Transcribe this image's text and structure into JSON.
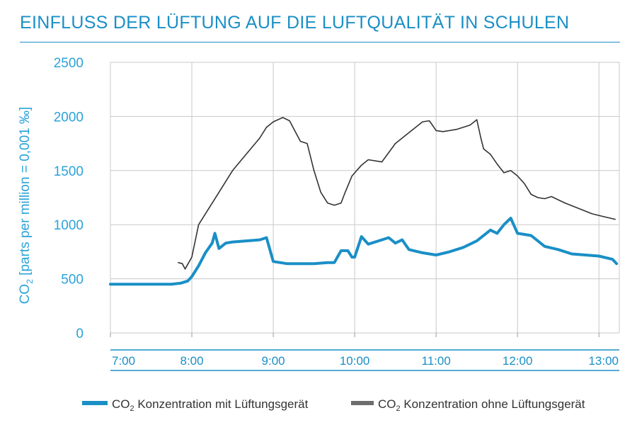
{
  "title": "EINFLUSS DER LÜFTUNG AUF DIE LUFTQUALITÄT IN SCHULEN",
  "colors": {
    "accent": "#1a8fc6",
    "axis_text": "#2aa3d8",
    "series_with": "#1a8fc6",
    "series_without": "#333333",
    "grid": "#c8c8c8",
    "legend_without_swatch": "#6d6d6d"
  },
  "chart_data": {
    "type": "line",
    "ylabel_prefix": "CO",
    "ylabel_sub": "2",
    "ylabel_rest": " [parts per million = 0,001 ‰]",
    "ylim": [
      0,
      2500
    ],
    "yticks": [
      "0",
      "500",
      "1000",
      "1500",
      "2000",
      "2500"
    ],
    "xlim": [
      "07:00",
      "13:15"
    ],
    "xticks": [
      "7:00",
      "8:00",
      "9:00",
      "10:00",
      "11:00",
      "12:00",
      "13:00"
    ],
    "grid": true,
    "legend_position": "bottom",
    "series": [
      {
        "name_prefix": "CO",
        "name_sub": "2",
        "name_rest": " Konzentration mit Lüftungsgerät",
        "x": [
          "07:00",
          "07:15",
          "07:30",
          "07:45",
          "07:52",
          "07:57",
          "08:00",
          "08:05",
          "08:10",
          "08:15",
          "08:17",
          "08:20",
          "08:25",
          "08:30",
          "08:40",
          "08:50",
          "08:55",
          "09:00",
          "09:10",
          "09:20",
          "09:30",
          "09:40",
          "09:45",
          "09:50",
          "09:55",
          "09:58",
          "10:00",
          "10:05",
          "10:10",
          "10:20",
          "10:25",
          "10:30",
          "10:35",
          "10:40",
          "10:50",
          "11:00",
          "11:10",
          "11:20",
          "11:30",
          "11:40",
          "11:45",
          "11:50",
          "11:55",
          "12:00",
          "12:10",
          "12:20",
          "12:30",
          "12:40",
          "12:50",
          "13:00",
          "13:10",
          "13:13"
        ],
        "y": [
          450,
          450,
          450,
          450,
          460,
          480,
          520,
          620,
          740,
          830,
          920,
          780,
          830,
          840,
          850,
          860,
          880,
          660,
          640,
          640,
          640,
          650,
          650,
          760,
          760,
          700,
          700,
          890,
          820,
          860,
          880,
          830,
          860,
          770,
          740,
          720,
          750,
          790,
          850,
          950,
          920,
          1000,
          1060,
          920,
          900,
          800,
          770,
          730,
          720,
          710,
          680,
          640
        ]
      },
      {
        "name_prefix": "CO",
        "name_sub": "2",
        "name_rest": " Konzentration ohne Lüftungsgerät",
        "x": [
          "07:50",
          "07:53",
          "07:55",
          "08:00",
          "08:05",
          "08:10",
          "08:20",
          "08:30",
          "08:40",
          "08:50",
          "08:55",
          "09:00",
          "09:07",
          "09:12",
          "09:20",
          "09:25",
          "09:30",
          "09:35",
          "09:40",
          "09:45",
          "09:50",
          "09:53",
          "09:58",
          "10:05",
          "10:10",
          "10:20",
          "10:30",
          "10:40",
          "10:50",
          "10:55",
          "11:00",
          "11:05",
          "11:15",
          "11:25",
          "11:30",
          "11:33",
          "11:35",
          "11:40",
          "11:45",
          "11:50",
          "11:55",
          "12:00",
          "12:05",
          "12:10",
          "12:15",
          "12:20",
          "12:25",
          "12:35",
          "12:45",
          "12:55",
          "13:05",
          "13:12"
        ],
        "y": [
          650,
          640,
          590,
          700,
          1000,
          1100,
          1300,
          1500,
          1650,
          1800,
          1900,
          1950,
          1990,
          1960,
          1770,
          1750,
          1500,
          1300,
          1200,
          1180,
          1200,
          1300,
          1450,
          1550,
          1600,
          1580,
          1750,
          1850,
          1950,
          1960,
          1870,
          1860,
          1880,
          1920,
          1970,
          1800,
          1700,
          1650,
          1560,
          1480,
          1500,
          1450,
          1380,
          1280,
          1250,
          1240,
          1260,
          1200,
          1150,
          1100,
          1070,
          1050
        ]
      }
    ]
  }
}
